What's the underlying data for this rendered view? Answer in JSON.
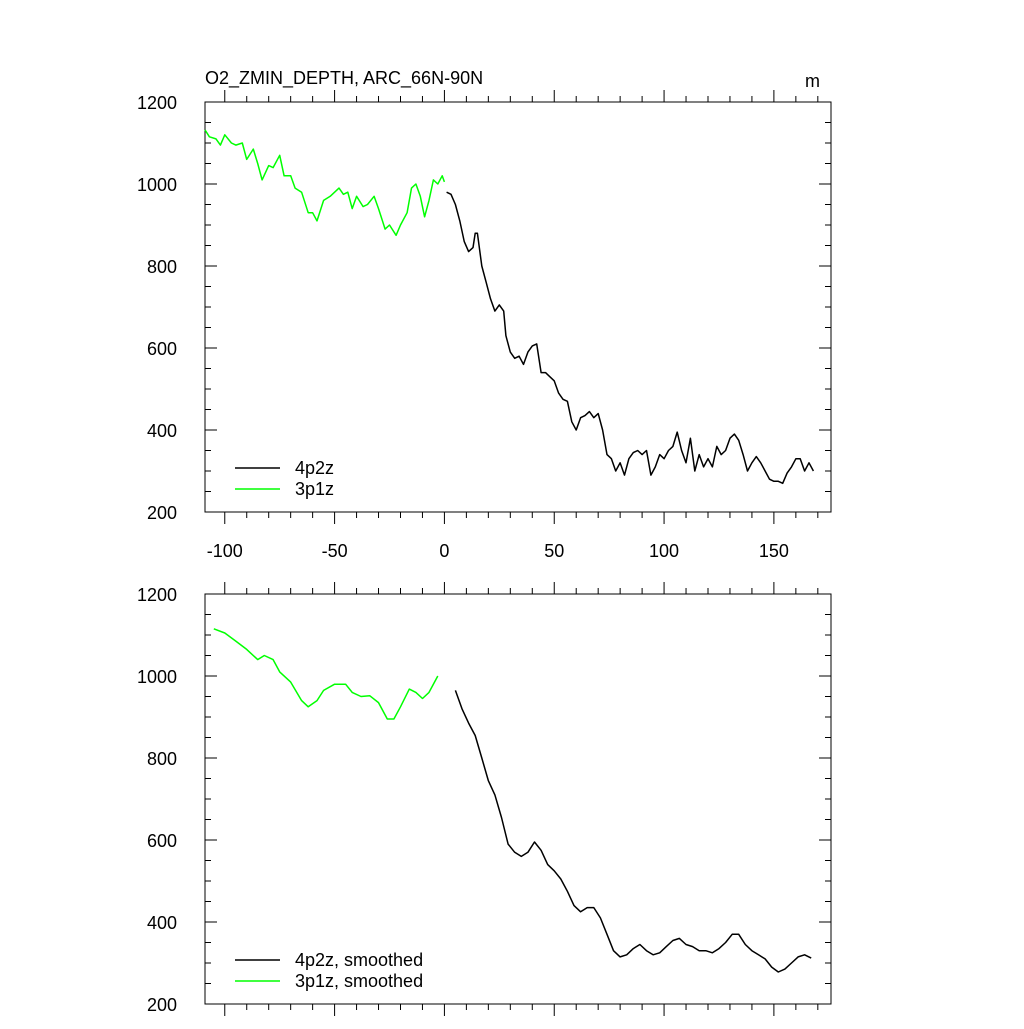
{
  "chart_data": [
    {
      "type": "line",
      "title": "O2_ZMIN_DEPTH, ARC_66N-90N",
      "units": "m",
      "xlim": [
        -109,
        176
      ],
      "ylim": [
        200,
        1200
      ],
      "xticks": [
        -100,
        -50,
        0,
        50,
        100,
        150
      ],
      "yticks": [
        200,
        400,
        600,
        800,
        1000,
        1200
      ],
      "xtick_labels": true,
      "minor_ticks": true,
      "legend": "lower-left",
      "series": [
        {
          "name": "4p2z",
          "color": "#000000",
          "x": [
            1,
            3,
            5,
            7,
            9,
            11,
            13,
            14,
            15,
            17,
            19,
            21,
            23,
            25,
            27,
            28,
            30,
            32,
            34,
            36,
            38,
            40,
            42,
            44,
            46,
            48,
            50,
            52,
            54,
            56,
            58,
            60,
            62,
            64,
            66,
            68,
            70,
            72,
            74,
            76,
            78,
            80,
            82,
            84,
            86,
            88,
            90,
            92,
            94,
            96,
            98,
            100,
            102,
            104,
            106,
            108,
            110,
            112,
            114,
            116,
            118,
            120,
            122,
            124,
            126,
            128,
            130,
            132,
            134,
            136,
            138,
            140,
            142,
            144,
            146,
            148,
            150,
            152,
            154,
            156,
            158,
            160,
            162,
            164,
            166,
            168
          ],
          "values": [
            980,
            975,
            950,
            910,
            860,
            835,
            845,
            880,
            880,
            800,
            760,
            720,
            690,
            705,
            690,
            630,
            590,
            575,
            580,
            560,
            590,
            605,
            610,
            540,
            540,
            530,
            520,
            490,
            475,
            470,
            420,
            400,
            430,
            435,
            445,
            430,
            440,
            400,
            340,
            330,
            300,
            320,
            290,
            330,
            345,
            350,
            340,
            350,
            290,
            310,
            340,
            330,
            350,
            360,
            395,
            350,
            320,
            380,
            300,
            340,
            310,
            330,
            310,
            360,
            340,
            350,
            380,
            390,
            375,
            340,
            300,
            320,
            335,
            320,
            300,
            280,
            275,
            275,
            270,
            295,
            310,
            330,
            330,
            300,
            320,
            300
          ]
        },
        {
          "name": "3p1z",
          "color": "#00ff00",
          "x": [
            -109,
            -107,
            -104,
            -102,
            -100,
            -97,
            -95,
            -92,
            -90,
            -87,
            -85,
            -83,
            -80,
            -78,
            -75,
            -73,
            -70,
            -68,
            -65,
            -62,
            -60,
            -58,
            -55,
            -52,
            -48,
            -46,
            -44,
            -42,
            -40,
            -37,
            -35,
            -32,
            -30,
            -27,
            -25,
            -22,
            -20,
            -17,
            -15,
            -13,
            -11,
            -9,
            -7,
            -5,
            -3,
            -1,
            0
          ],
          "values": [
            1132,
            1115,
            1110,
            1095,
            1120,
            1100,
            1095,
            1100,
            1060,
            1085,
            1050,
            1010,
            1045,
            1040,
            1070,
            1020,
            1020,
            990,
            980,
            930,
            930,
            910,
            960,
            970,
            990,
            975,
            980,
            940,
            970,
            945,
            950,
            970,
            940,
            890,
            900,
            875,
            900,
            930,
            990,
            1000,
            970,
            920,
            960,
            1010,
            1000,
            1020,
            1005
          ]
        }
      ]
    },
    {
      "type": "line",
      "xlim": [
        -109,
        176
      ],
      "ylim": [
        200,
        1200
      ],
      "xticks": [
        -100,
        -50,
        0,
        50,
        100,
        150
      ],
      "yticks": [
        200,
        400,
        600,
        800,
        1000,
        1200
      ],
      "xtick_labels": false,
      "minor_ticks": true,
      "legend": "lower-left",
      "series": [
        {
          "name": "4p2z, smoothed",
          "color": "#000000",
          "x": [
            5,
            8,
            11,
            14,
            17,
            20,
            23,
            26,
            29,
            32,
            35,
            38,
            41,
            44,
            47,
            50,
            53,
            56,
            59,
            62,
            65,
            68,
            71,
            74,
            77,
            80,
            83,
            86,
            89,
            92,
            95,
            98,
            101,
            104,
            107,
            110,
            113,
            116,
            119,
            122,
            125,
            128,
            131,
            134,
            137,
            140,
            143,
            146,
            149,
            152,
            155,
            158,
            161,
            164,
            167
          ],
          "values": [
            965,
            920,
            885,
            855,
            800,
            745,
            710,
            655,
            590,
            570,
            560,
            570,
            595,
            575,
            540,
            525,
            505,
            475,
            440,
            425,
            435,
            435,
            410,
            370,
            330,
            315,
            320,
            335,
            345,
            330,
            320,
            325,
            340,
            355,
            360,
            345,
            340,
            330,
            330,
            325,
            335,
            350,
            370,
            370,
            345,
            330,
            320,
            310,
            290,
            278,
            285,
            300,
            315,
            320,
            312
          ]
        },
        {
          "name": "3p1z, smoothed",
          "color": "#00ff00",
          "x": [
            -105,
            -100,
            -95,
            -90,
            -85,
            -82,
            -78,
            -75,
            -70,
            -65,
            -62,
            -58,
            -55,
            -50,
            -45,
            -42,
            -38,
            -34,
            -30,
            -26,
            -23,
            -20,
            -16,
            -13,
            -10,
            -7,
            -3
          ],
          "values": [
            1115,
            1105,
            1085,
            1065,
            1040,
            1050,
            1040,
            1010,
            985,
            940,
            925,
            940,
            965,
            980,
            980,
            960,
            950,
            952,
            935,
            895,
            895,
            925,
            968,
            960,
            945,
            960,
            1000
          ]
        }
      ]
    }
  ]
}
